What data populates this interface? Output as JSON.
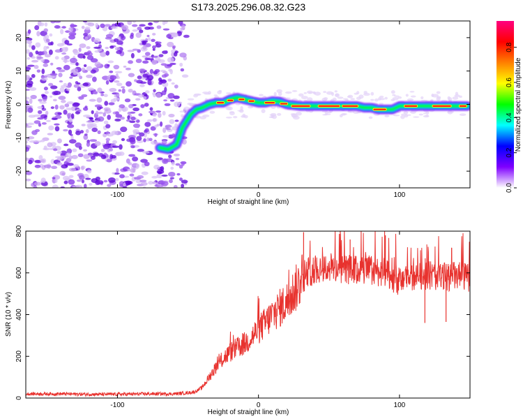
{
  "title": "S173.2025.296.08.32.G23",
  "chart_data": [
    {
      "type": "heatmap",
      "name": "spectrogram",
      "xlabel": "Height of straight line (km)",
      "ylabel": "Frequency (Hz)",
      "xlim": [
        -165,
        150
      ],
      "ylim": [
        -25,
        25
      ],
      "xticks": [
        -100,
        0,
        100
      ],
      "yticks": [
        -20,
        -10,
        0,
        10,
        20
      ],
      "noise_region_x": [
        -165,
        -50
      ],
      "ridge": {
        "x": [
          -70,
          -64,
          -58,
          -54,
          -48,
          -44,
          -40,
          -35,
          -30,
          -25,
          -20,
          -15,
          -10,
          -5,
          0,
          5,
          10,
          15,
          20,
          30,
          40,
          50,
          60,
          70,
          75,
          80,
          85,
          90,
          95,
          100,
          110,
          120,
          130,
          140,
          148
        ],
        "y": [
          -13,
          -13.5,
          -12,
          -7,
          -3,
          -1.5,
          -1,
          0,
          0.5,
          0.5,
          1.5,
          2,
          1.5,
          1,
          0.5,
          0.5,
          1,
          0.8,
          0,
          -0.5,
          -0.5,
          -0.5,
          -0.5,
          -0.5,
          -1,
          -1,
          -1.5,
          -1.5,
          -1.5,
          -0.5,
          -0.5,
          -0.5,
          -0.5,
          -0.5,
          -0.5
        ]
      },
      "colorbar": {
        "label": "Normalized spectral amplitude",
        "range": [
          0,
          0.95
        ],
        "ticks": [
          0.0,
          0.2,
          0.4,
          0.6,
          0.8
        ],
        "colors": [
          "#ffffff",
          "#7f00ff",
          "#0000ff",
          "#00ffff",
          "#00ff00",
          "#ffff00",
          "#ff8000",
          "#ff0000",
          "#ff0080"
        ]
      }
    },
    {
      "type": "line",
      "name": "snr",
      "xlabel": "Height of straight line (km)",
      "ylabel": "SNR (10 * v/v)",
      "xlim": [
        -165,
        150
      ],
      "ylim": [
        0,
        800
      ],
      "xticks": [
        -100,
        0,
        100
      ],
      "yticks": [
        0,
        200,
        400,
        600,
        800
      ],
      "color": "#e8322e",
      "envelope": {
        "x": [
          -165,
          -140,
          -120,
          -100,
          -80,
          -60,
          -50,
          -45,
          -40,
          -35,
          -30,
          -25,
          -20,
          -15,
          -10,
          -5,
          0,
          5,
          10,
          15,
          20,
          25,
          30,
          35,
          40,
          50,
          60,
          70,
          80,
          90,
          95,
          100,
          110,
          120,
          130,
          140,
          150
        ],
        "y": [
          20,
          20,
          18,
          18,
          20,
          20,
          25,
          30,
          50,
          100,
          150,
          190,
          220,
          240,
          260,
          290,
          330,
          360,
          400,
          430,
          460,
          510,
          560,
          600,
          620,
          625,
          620,
          610,
          615,
          600,
          560,
          560,
          580,
          590,
          580,
          585,
          575
        ]
      },
      "spikes": [
        {
          "x": 32,
          "y": 795
        },
        {
          "x": 58,
          "y": 800
        },
        {
          "x": 65,
          "y": 760
        },
        {
          "x": 90,
          "y": 780
        },
        {
          "x": 118,
          "y": 360
        },
        {
          "x": 133,
          "y": 365
        },
        {
          "x": 137,
          "y": 720
        }
      ]
    }
  ]
}
